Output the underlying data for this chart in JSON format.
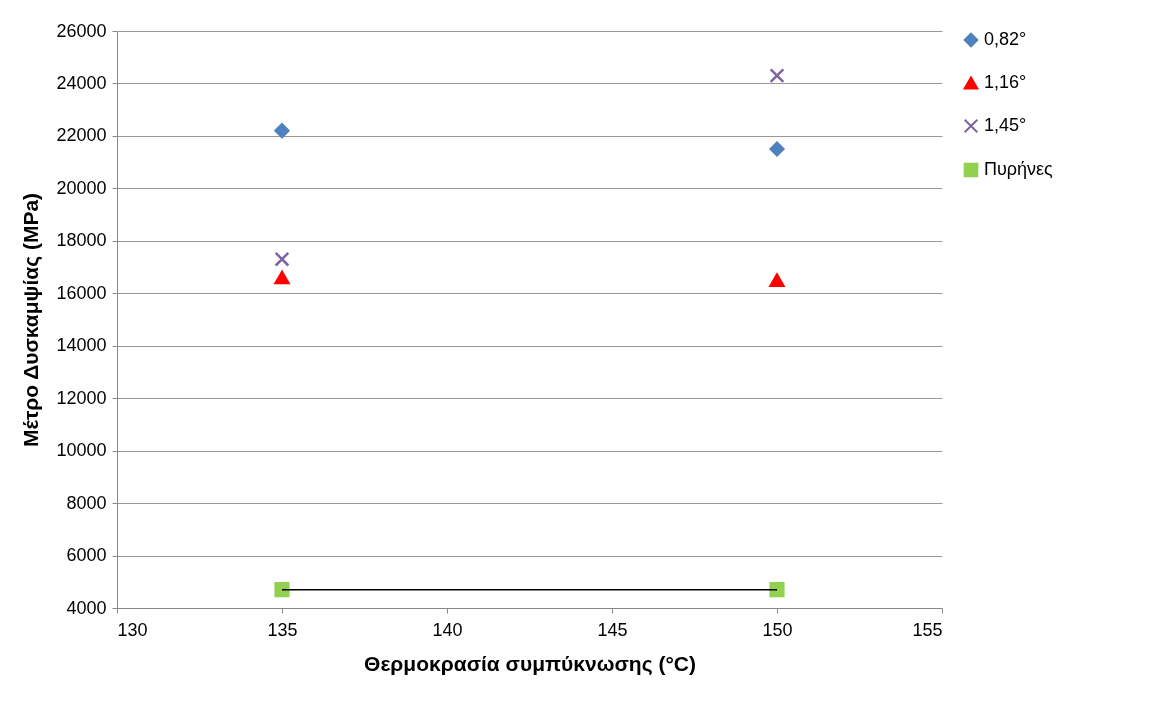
{
  "chart_data": {
    "type": "scatter",
    "xlabel": "Θερμοκρασία συμπύκνωσης (°C)",
    "ylabel": "Μέτρο Δυσκαμψίας (MPa)",
    "xlim": [
      130,
      155
    ],
    "xticks": [
      130,
      135,
      140,
      145,
      150,
      155
    ],
    "ylim": [
      4000,
      26000
    ],
    "yticks": [
      4000,
      6000,
      8000,
      10000,
      12000,
      14000,
      16000,
      18000,
      20000,
      22000,
      24000,
      26000
    ],
    "grid": "y",
    "legend": "right",
    "x": [
      135,
      150
    ],
    "series": [
      {
        "name": "0,82°",
        "color": "#4f81bd",
        "marker": "diamond",
        "values": [
          22200,
          21500
        ]
      },
      {
        "name": "1,16°",
        "color": "#ff0000",
        "marker": "triangle",
        "values": [
          16600,
          16500
        ]
      },
      {
        "name": "1,45°",
        "color": "#8064a2",
        "marker": "cross",
        "values": [
          17300,
          24300
        ]
      },
      {
        "name": "Πυρήνες",
        "color": "#92d050",
        "marker": "square",
        "values": [
          4700,
          4700
        ]
      },
      {
        "type": "line",
        "color": "#000000",
        "marker": "none",
        "values": [
          4700,
          4700
        ]
      }
    ]
  }
}
